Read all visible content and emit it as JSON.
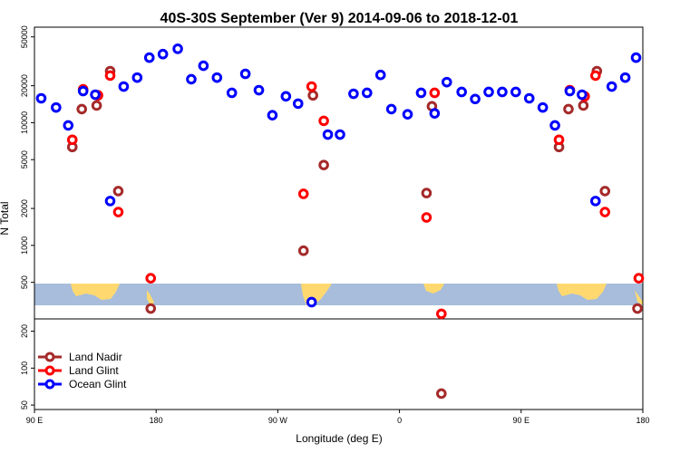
{
  "chart_data": {
    "type": "scatter",
    "title": "40S-30S September (Ver 9)   2014-09-06 to 2018-12-01",
    "x_label": "Longitude (deg E)",
    "y_label": "N Total",
    "log_y": true,
    "grid": false,
    "legend_position": "bottom-left",
    "xlim": [
      90,
      540
    ],
    "xticks": [
      {
        "value": 90,
        "label": "90 E"
      },
      180,
      {
        "value": 270,
        "label": "90 W"
      },
      {
        "value": 360,
        "label": "0"
      },
      {
        "value": 450,
        "label": "90 E"
      },
      {
        "value": 540,
        "label": "180"
      }
    ],
    "ylim": [
      46,
      60000
    ],
    "yticks": [
      50,
      100,
      200,
      500,
      1000,
      2000,
      5000,
      10000,
      20000,
      50000
    ],
    "series": [
      {
        "name": "Land Nadir",
        "color": "#a52a2a",
        "x": [
          118,
          125,
          136,
          146,
          152,
          176,
          289,
          296,
          304,
          380,
          384,
          391,
          478,
          485,
          496,
          506,
          512,
          536
        ],
        "values": [
          6340,
          12900,
          13800,
          26300,
          2770,
          306,
          905,
          16700,
          4520,
          2670,
          13600,
          62,
          6340,
          12900,
          13800,
          26300,
          2770,
          306
        ]
      },
      {
        "name": "Land Glint",
        "color": "#ff0000",
        "x": [
          118,
          126,
          137,
          146,
          152,
          176,
          289,
          295,
          304,
          386,
          380,
          391,
          478,
          486,
          497,
          505,
          512,
          537
        ],
        "values": [
          7260,
          18700,
          16700,
          24200,
          1870,
          540,
          2630,
          19700,
          10350,
          17500,
          1690,
          277,
          7260,
          18400,
          16400,
          24200,
          1870,
          540
        ]
      },
      {
        "name": "Ocean Glint",
        "color": "#0000ff",
        "x": [
          95,
          106,
          115,
          126,
          135,
          146,
          156,
          166,
          175,
          185,
          196,
          206,
          215,
          225,
          236,
          246,
          256,
          266,
          276,
          285,
          295,
          307,
          316,
          326,
          336,
          346,
          354,
          366,
          376,
          386,
          395,
          406,
          416,
          426,
          436,
          446,
          456,
          466,
          475,
          486,
          495,
          505,
          517,
          527,
          535
        ],
        "values": [
          15800,
          13300,
          9500,
          18100,
          16900,
          2300,
          19700,
          23300,
          33900,
          36200,
          40000,
          22600,
          29100,
          23300,
          17500,
          25000,
          18400,
          11500,
          16400,
          14300,
          345,
          8000,
          8000,
          17200,
          17500,
          24500,
          12900,
          11700,
          17500,
          11900,
          21400,
          17800,
          15600,
          17800,
          17800,
          17800,
          15800,
          13300,
          9500,
          18100,
          16900,
          2300,
          19700,
          23300,
          33900
        ]
      }
    ]
  }
}
